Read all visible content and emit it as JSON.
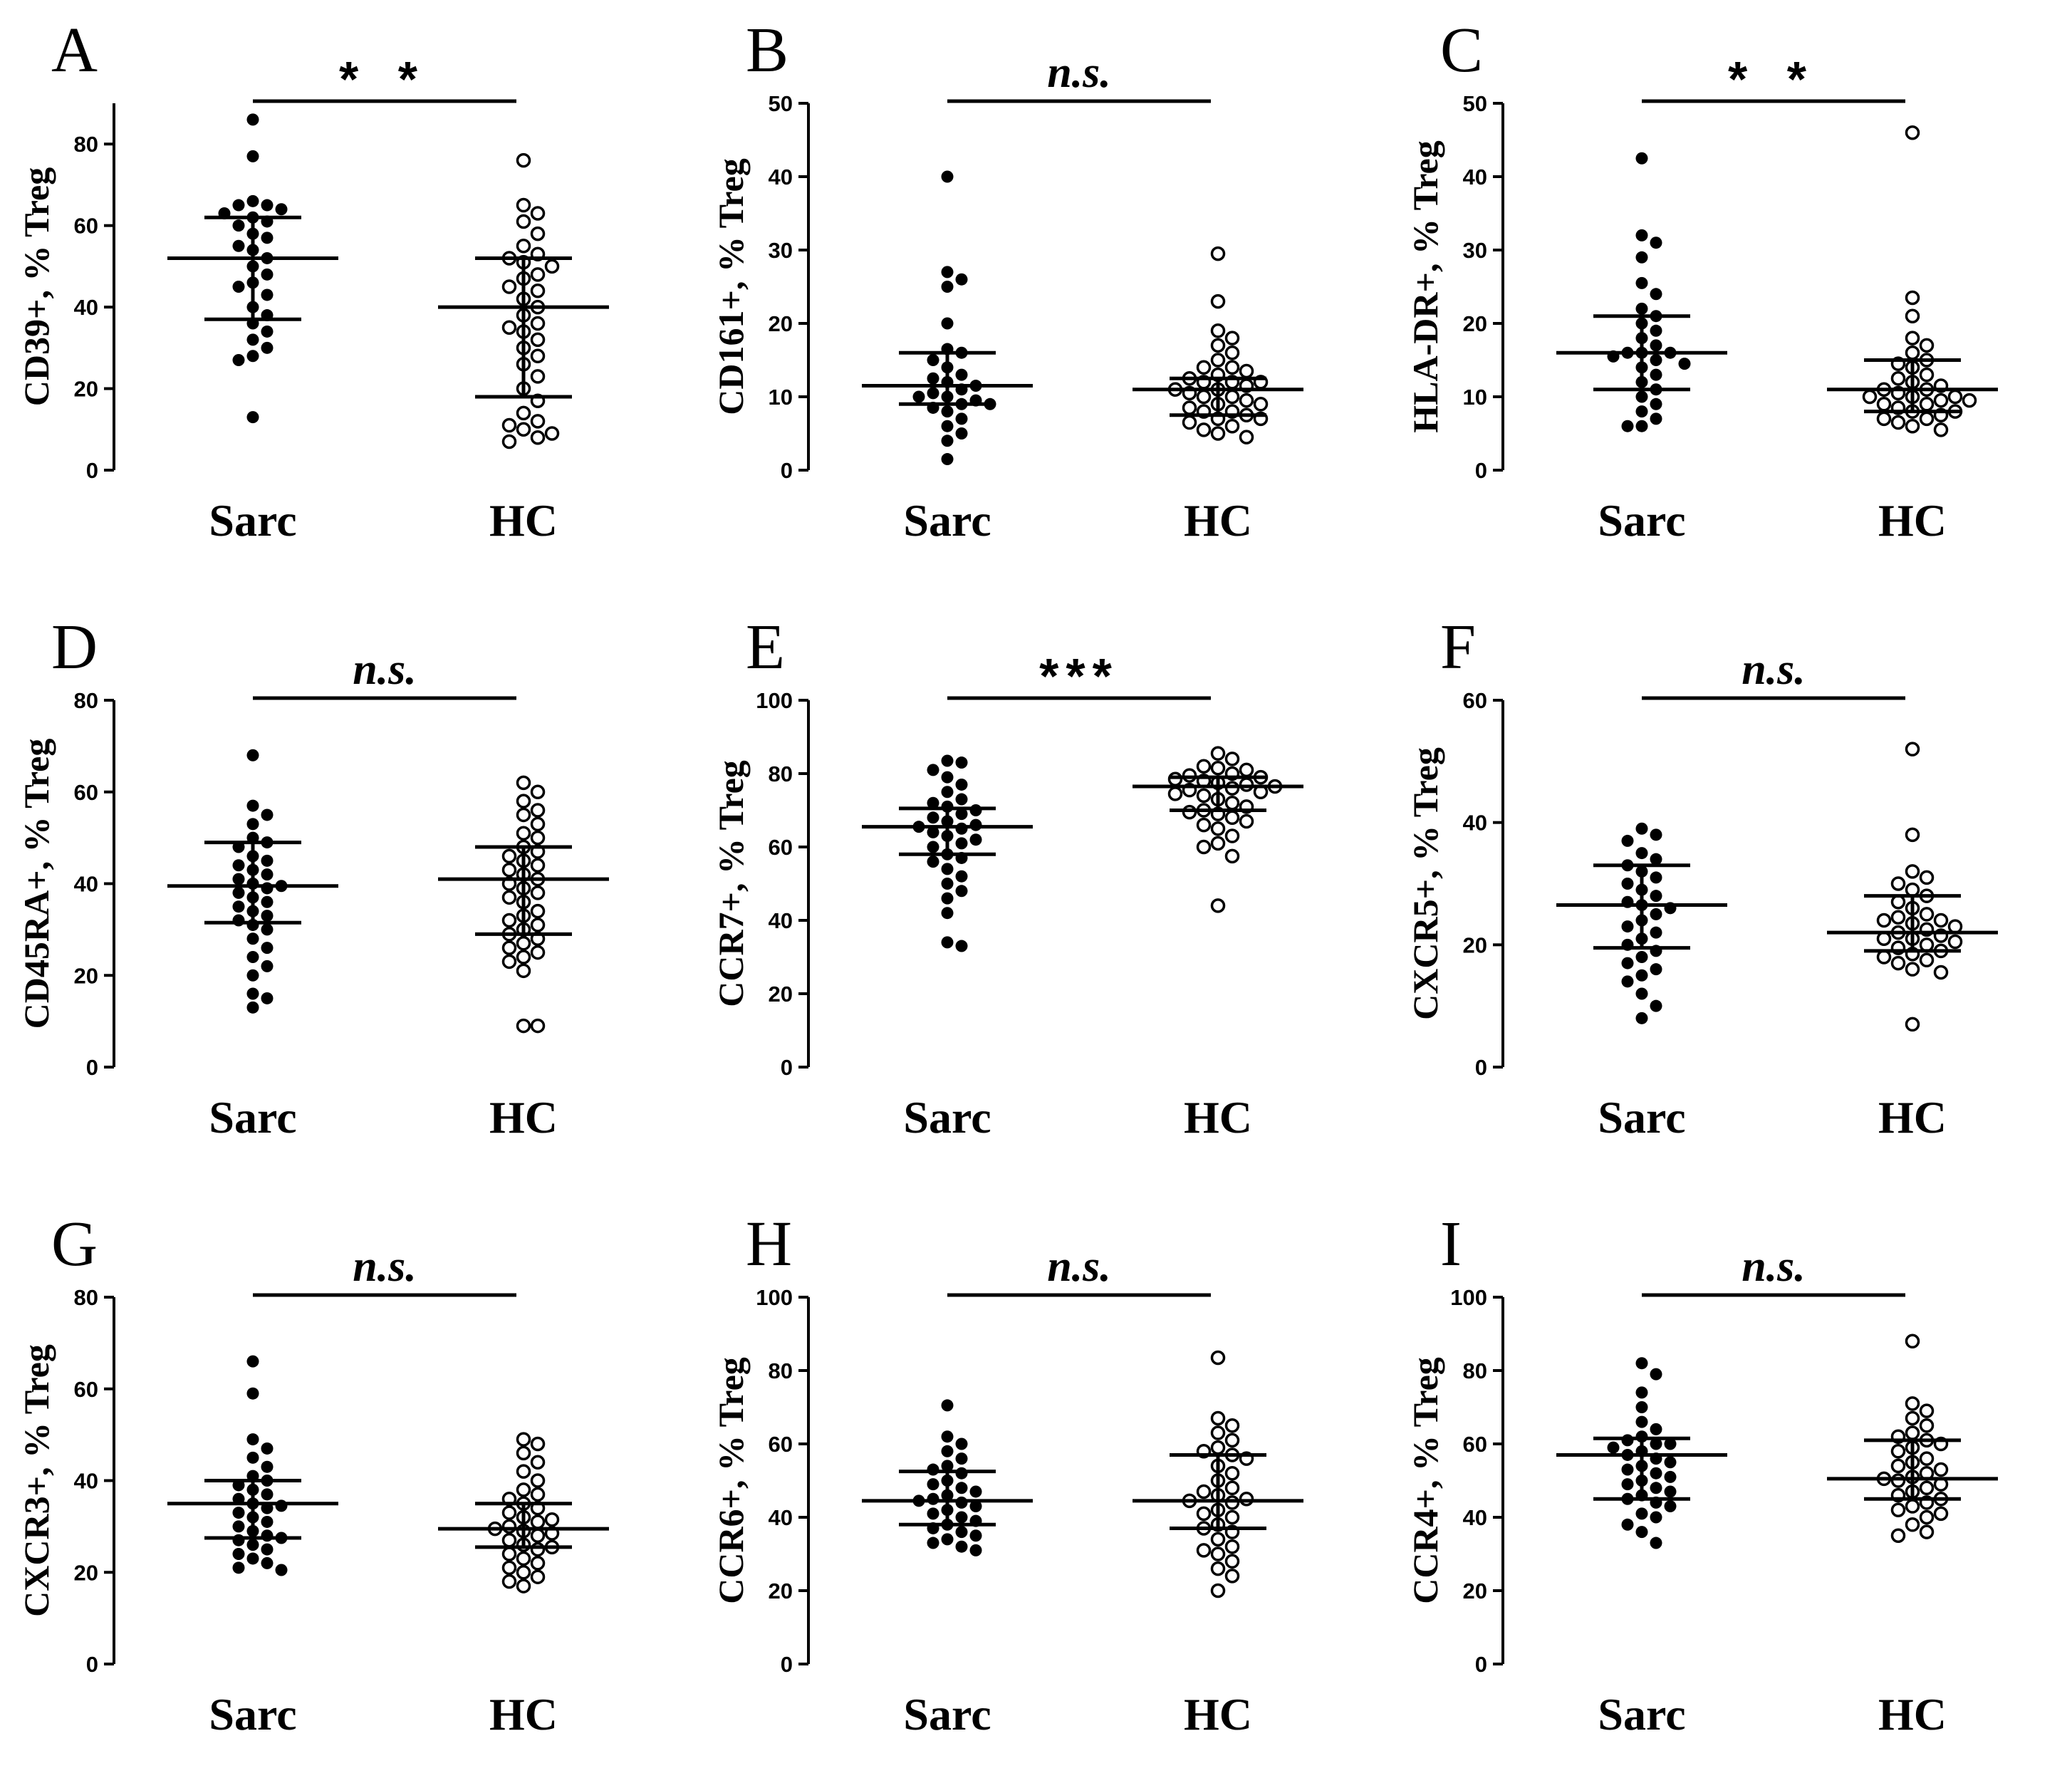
{
  "chart_data": [
    {
      "type": "scatter",
      "panel": "A",
      "ylabel": "CD39+, % Treg",
      "categories": [
        "Sarc",
        "HC"
      ],
      "ylim": [
        0,
        90
      ],
      "yticks": [
        0,
        20,
        40,
        60,
        80
      ],
      "significance": "* *",
      "groups": [
        {
          "name": "Sarc",
          "filled": true,
          "median": 52,
          "q1": 37,
          "q3": 62,
          "values": [
            86,
            77,
            66,
            65,
            65,
            64,
            63,
            62,
            61,
            60,
            58,
            57,
            55,
            54,
            52,
            50,
            48,
            46,
            45,
            43,
            40,
            38,
            36,
            34,
            32,
            30,
            28,
            27,
            13
          ]
        },
        {
          "name": "HC",
          "filled": false,
          "median": 40,
          "q1": 18,
          "q3": 52,
          "values": [
            76,
            65,
            63,
            61,
            58,
            55,
            53,
            52,
            51,
            50,
            48,
            47,
            45,
            44,
            42,
            40,
            38,
            36,
            35,
            34,
            32,
            30,
            28,
            26,
            23,
            20,
            17,
            14,
            12,
            11,
            10,
            9,
            8,
            7
          ]
        }
      ]
    },
    {
      "type": "scatter",
      "panel": "B",
      "ylabel": "CD161+, % Treg",
      "categories": [
        "Sarc",
        "HC"
      ],
      "ylim": [
        0,
        50
      ],
      "yticks": [
        0,
        10,
        20,
        30,
        40,
        50
      ],
      "significance": "n.s.",
      "groups": [
        {
          "name": "Sarc",
          "filled": true,
          "median": 11.5,
          "q1": 9,
          "q3": 16,
          "values": [
            40,
            27,
            26,
            25,
            20,
            16.5,
            16,
            15,
            14,
            13,
            12.5,
            12,
            11.5,
            11,
            10.5,
            10,
            10,
            9.5,
            9,
            9,
            8.5,
            8,
            7,
            6,
            5,
            4,
            1.5
          ]
        },
        {
          "name": "HC",
          "filled": false,
          "median": 11,
          "q1": 7.5,
          "q3": 12.5,
          "values": [
            29.5,
            23,
            19,
            18,
            17,
            16,
            15,
            14,
            13.5,
            13,
            12.5,
            12,
            12,
            11.5,
            11,
            11,
            10.5,
            10,
            10,
            9.5,
            9,
            9,
            8.5,
            8,
            8,
            7.5,
            7,
            7,
            6.5,
            6,
            5.5,
            5,
            4.5,
            14,
            12
          ]
        }
      ]
    },
    {
      "type": "scatter",
      "panel": "C",
      "ylabel": "HLA-DR+, % Treg",
      "categories": [
        "Sarc",
        "HC"
      ],
      "ylim": [
        0,
        50
      ],
      "yticks": [
        0,
        10,
        20,
        30,
        40,
        50
      ],
      "significance": "* *",
      "groups": [
        {
          "name": "Sarc",
          "filled": true,
          "median": 16,
          "q1": 11,
          "q3": 21,
          "values": [
            42.5,
            32,
            31,
            29,
            25.5,
            24,
            22,
            21,
            20,
            19,
            18,
            17,
            16,
            16,
            16,
            15.5,
            15,
            14.5,
            14,
            13,
            12,
            11,
            10,
            9,
            8,
            7,
            6,
            6
          ]
        },
        {
          "name": "HC",
          "filled": false,
          "median": 11,
          "q1": 8,
          "q3": 15,
          "values": [
            46,
            23.5,
            21,
            18,
            17,
            16,
            15,
            14.5,
            14,
            13,
            12.5,
            12,
            11.5,
            11,
            11,
            10.5,
            10,
            10,
            9.5,
            9,
            9,
            8.5,
            8,
            8,
            7.5,
            7,
            7,
            6.5,
            6,
            5.5,
            10,
            9.5
          ]
        }
      ]
    },
    {
      "type": "scatter",
      "panel": "D",
      "ylabel": "CD45RA+, % Treg",
      "categories": [
        "Sarc",
        "HC"
      ],
      "ylim": [
        0,
        80
      ],
      "yticks": [
        0,
        20,
        40,
        60,
        80
      ],
      "significance": "n.s.",
      "groups": [
        {
          "name": "Sarc",
          "filled": true,
          "median": 39.5,
          "q1": 31.5,
          "q3": 49,
          "values": [
            68,
            57,
            55,
            53,
            50,
            49,
            48,
            46,
            45,
            44,
            43,
            42,
            41,
            40,
            39.5,
            39,
            38,
            37,
            36,
            35,
            34,
            33,
            32,
            31,
            30,
            28,
            26,
            24,
            22,
            20,
            16,
            15,
            13
          ]
        },
        {
          "name": "HC",
          "filled": false,
          "median": 41,
          "q1": 29,
          "q3": 48,
          "values": [
            62,
            60,
            58,
            56,
            55,
            53,
            51,
            50,
            48,
            47,
            46,
            45,
            44,
            43,
            42,
            41,
            40,
            39,
            38,
            37,
            36,
            34,
            33,
            32,
            31,
            30,
            29,
            28,
            27,
            26,
            25,
            24,
            23,
            21,
            9,
            9
          ]
        }
      ]
    },
    {
      "type": "scatter",
      "panel": "E",
      "ylabel": "CCR7+, % Treg",
      "categories": [
        "Sarc",
        "HC"
      ],
      "ylim": [
        0,
        100
      ],
      "yticks": [
        0,
        20,
        40,
        60,
        80,
        100
      ],
      "significance": "***",
      "groups": [
        {
          "name": "Sarc",
          "filled": true,
          "median": 65.5,
          "q1": 58,
          "q3": 70.5,
          "values": [
            83.5,
            83,
            81,
            79,
            77,
            75,
            73,
            72,
            71,
            70,
            69,
            68,
            67,
            66,
            65.5,
            65,
            64,
            63,
            62,
            61,
            60,
            58,
            57,
            56,
            54,
            52,
            50,
            48,
            46,
            42,
            34,
            33
          ]
        },
        {
          "name": "HC",
          "filled": false,
          "median": 76.5,
          "q1": 70,
          "q3": 79,
          "values": [
            85.5,
            84,
            82,
            81.5,
            81,
            80,
            79.5,
            79,
            78.5,
            78,
            77.5,
            77,
            76.5,
            76,
            75.5,
            75,
            74.5,
            74,
            73,
            72,
            71,
            70,
            69.5,
            69,
            68,
            67,
            66,
            65,
            63,
            61,
            60,
            57.5,
            44
          ]
        }
      ]
    },
    {
      "type": "scatter",
      "panel": "F",
      "ylabel": "CXCR5+, % Treg",
      "categories": [
        "Sarc",
        "HC"
      ],
      "ylim": [
        0,
        60
      ],
      "yticks": [
        0,
        20,
        40,
        60
      ],
      "significance": "n.s.",
      "groups": [
        {
          "name": "Sarc",
          "filled": true,
          "median": 26.5,
          "q1": 19.5,
          "q3": 33,
          "values": [
            39,
            38,
            37,
            35,
            34,
            33,
            32,
            31,
            30,
            29,
            28,
            27,
            26.5,
            26,
            25,
            24,
            23,
            22,
            21,
            20,
            19,
            18,
            17,
            16,
            15,
            14,
            12,
            10,
            8
          ]
        },
        {
          "name": "HC",
          "filled": false,
          "median": 22,
          "q1": 19,
          "q3": 28,
          "values": [
            52,
            38,
            32,
            31,
            30,
            29,
            28,
            27,
            26,
            25,
            24.5,
            24,
            23.5,
            23,
            22.5,
            22,
            21.5,
            21,
            20.5,
            20,
            19.5,
            19,
            18.5,
            18,
            17.5,
            17,
            16,
            15.5,
            7,
            24,
            21
          ]
        }
      ]
    },
    {
      "type": "scatter",
      "panel": "G",
      "ylabel": "CXCR3+, % Treg",
      "categories": [
        "Sarc",
        "HC"
      ],
      "ylim": [
        0,
        80
      ],
      "yticks": [
        0,
        20,
        40,
        60,
        80
      ],
      "significance": "n.s.",
      "groups": [
        {
          "name": "Sarc",
          "filled": true,
          "median": 35,
          "q1": 27.5,
          "q3": 40,
          "values": [
            66,
            59,
            49,
            47,
            45,
            43,
            41,
            40,
            39,
            38,
            37,
            36,
            35,
            34.5,
            34,
            33,
            32,
            31,
            30,
            29,
            28,
            27.5,
            27,
            26,
            25,
            24,
            23,
            22,
            21,
            20.5
          ]
        },
        {
          "name": "HC",
          "filled": false,
          "median": 29.5,
          "q1": 25.5,
          "q3": 35,
          "values": [
            49,
            48,
            46,
            44,
            42,
            40,
            38,
            37,
            36,
            35,
            34,
            33,
            32,
            31.5,
            31,
            30,
            29.5,
            29,
            28.5,
            28,
            27,
            26,
            25.5,
            25,
            24,
            23,
            22,
            21,
            20,
            19,
            18,
            17
          ]
        }
      ]
    },
    {
      "type": "scatter",
      "panel": "H",
      "ylabel": "CCR6+, % Treg",
      "categories": [
        "Sarc",
        "HC"
      ],
      "ylim": [
        0,
        100
      ],
      "yticks": [
        0,
        20,
        40,
        60,
        80,
        100
      ],
      "significance": "n.s.",
      "groups": [
        {
          "name": "Sarc",
          "filled": true,
          "median": 44.5,
          "q1": 38,
          "q3": 52.5,
          "values": [
            70.5,
            62,
            60,
            58,
            56,
            54,
            53,
            52,
            50,
            49,
            48,
            47,
            46,
            45,
            44.5,
            44,
            43,
            42,
            41,
            40,
            39,
            38,
            37,
            36,
            35,
            34,
            33,
            32,
            31
          ]
        },
        {
          "name": "HC",
          "filled": false,
          "median": 44.5,
          "q1": 37,
          "q3": 57,
          "values": [
            83.5,
            67,
            65,
            63,
            61,
            59,
            58,
            57,
            56,
            54,
            52,
            50,
            48,
            47,
            46,
            45,
            44.5,
            44,
            42,
            41,
            40,
            38,
            37,
            36,
            34,
            32,
            31,
            30,
            28,
            26,
            24,
            20
          ]
        }
      ]
    },
    {
      "type": "scatter",
      "panel": "I",
      "ylabel": "CCR4+, % Treg",
      "categories": [
        "Sarc",
        "HC"
      ],
      "ylim": [
        0,
        100
      ],
      "yticks": [
        0,
        20,
        40,
        60,
        80,
        100
      ],
      "significance": "n.s.",
      "groups": [
        {
          "name": "Sarc",
          "filled": true,
          "median": 57,
          "q1": 45,
          "q3": 61.5,
          "values": [
            82,
            79,
            74,
            70,
            66,
            64,
            62,
            61,
            60,
            60,
            59,
            58,
            57,
            56,
            55,
            54,
            53,
            52,
            51,
            50,
            49,
            48,
            47,
            46,
            45,
            44,
            43,
            41,
            40,
            38,
            36,
            33
          ]
        },
        {
          "name": "HC",
          "filled": false,
          "median": 50.5,
          "q1": 45,
          "q3": 61,
          "values": [
            88,
            71,
            69,
            67,
            65,
            63,
            62,
            61,
            60,
            59,
            58,
            56,
            55,
            54,
            53,
            52,
            51,
            50.5,
            50,
            49,
            48,
            47,
            46,
            45,
            44,
            43,
            42,
            41,
            40,
            38,
            36,
            35
          ]
        }
      ]
    }
  ]
}
